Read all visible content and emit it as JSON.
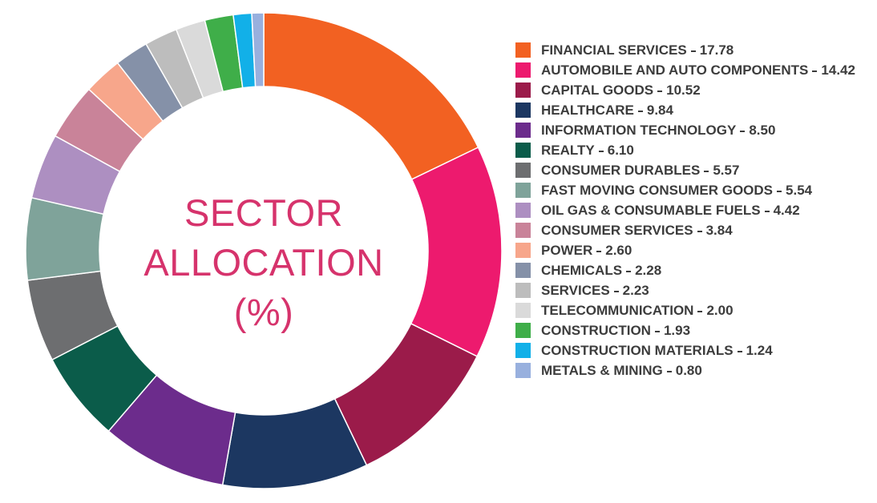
{
  "chart_data": {
    "type": "pie",
    "donut": true,
    "title": "SECTOR ALLOCATION (%)",
    "categories": [
      "FINANCIAL SERVICES",
      "AUTOMOBILE AND AUTO COMPONENTS",
      "CAPITAL GOODS",
      "HEALTHCARE",
      "INFORMATION TECHNOLOGY",
      "REALTY",
      "CONSUMER DURABLES",
      "FAST MOVING CONSUMER GOODS",
      "OIL GAS & CONSUMABLE FUELS",
      "CONSUMER SERVICES",
      "POWER",
      "CHEMICALS",
      "SERVICES",
      "TELECOMMUNICATION",
      "CONSTRUCTION",
      "CONSTRUCTION MATERIALS",
      "METALS & MINING"
    ],
    "values": [
      17.78,
      14.42,
      10.52,
      9.84,
      8.5,
      6.1,
      5.57,
      5.54,
      4.42,
      3.84,
      2.6,
      2.28,
      2.23,
      2.0,
      1.93,
      1.24,
      0.8
    ],
    "value_labels": [
      "17.78",
      "14.42",
      "10.52",
      "9.84",
      "8.50",
      "6.10",
      "5.57",
      "5.54",
      "4.42",
      "3.84",
      "2.60",
      "2.28",
      "2.23",
      "2.00",
      "1.93",
      "1.24",
      "0.80"
    ],
    "colors": [
      "#f26122",
      "#ed1a6e",
      "#9b1b4a",
      "#1c3761",
      "#6c2c8c",
      "#0b5c4a",
      "#6d6e70",
      "#7fa39a",
      "#ad8fc1",
      "#c98399",
      "#f7a68b",
      "#8591a8",
      "#bdbdbd",
      "#dadada",
      "#3fae49",
      "#12b0e8",
      "#98b0de"
    ],
    "legend": "right"
  }
}
